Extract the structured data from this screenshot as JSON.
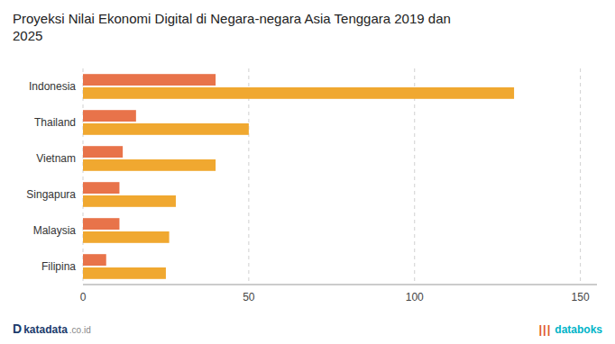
{
  "chart_data": {
    "type": "bar",
    "orientation": "horizontal",
    "title": "Proyeksi Nilai Ekonomi Digital di Negara-negara Asia Tenggara 2019 dan\n2025",
    "categories": [
      "Indonesia",
      "Thailand",
      "Vietnam",
      "Singapura",
      "Malaysia",
      "Filipina"
    ],
    "series": [
      {
        "color": "#E8734A",
        "values": [
          40,
          16,
          12,
          11,
          11,
          7
        ]
      },
      {
        "color": "#F0A830",
        "values": [
          130,
          50,
          40,
          28,
          26,
          25
        ]
      }
    ],
    "xlim": [
      0,
      155
    ],
    "xticks": [
      0,
      50,
      100,
      150
    ],
    "grid": true,
    "annotations": [
      "D",
      "katadata",
      ".co.id",
      "|",
      "|",
      "|",
      "databoks"
    ]
  }
}
